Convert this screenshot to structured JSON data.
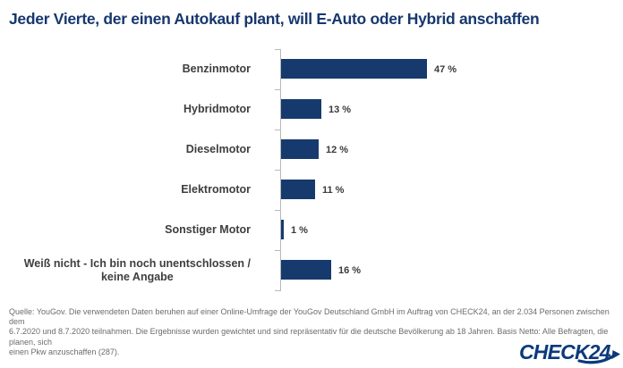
{
  "title": "Jeder Vierte, der einen Autokauf plant, will E-Auto oder Hybrid anschaffen",
  "chart_data": {
    "type": "bar",
    "orientation": "horizontal",
    "title": "Jeder Vierte, der einen Autokauf plant, will E-Auto oder Hybrid anschaffen",
    "categories": [
      "Benzinmotor",
      "Hybridmotor",
      "Dieselmotor",
      "Elektromotor",
      "Sonstiger Motor",
      "Weiß nicht - Ich bin noch unentschlossen / keine Angabe"
    ],
    "category_display_lines": [
      [
        "Benzinmotor"
      ],
      [
        "Hybridmotor"
      ],
      [
        "Dieselmotor"
      ],
      [
        "Elektromotor"
      ],
      [
        "Sonstiger Motor"
      ],
      [
        "Weiß nicht - Ich bin noch unentschlossen /",
        "keine Angabe"
      ]
    ],
    "values": [
      47,
      13,
      12,
      11,
      1,
      16
    ],
    "value_labels": [
      "47 %",
      "13 %",
      "12 %",
      "11 %",
      "1 %",
      "16 %"
    ],
    "unit": "%",
    "xlim": [
      0,
      50
    ],
    "grid": false,
    "legend": null,
    "bar_color": "#163a6d",
    "axis_color": "#b8b8b8",
    "label_color": "#3e3e3e",
    "value_color": "#3a3a3a"
  },
  "footer": {
    "lines": [
      "Quelle: YouGov. Die verwendeten Daten beruhen auf einer Online-Umfrage der YouGov Deutschland GmbH im Auftrag von CHECK24, an der 2.034 Personen zwischen dem",
      "6.7.2020 und 8.7.2020 teilnahmen. Die Ergebnisse wurden gewichtet und sind repräsentativ für die deutsche Bevölkerung ab 18 Jahren. Basis Netto: Alle Befragten, die planen, sich",
      "einen Pkw anzuschaffen (287)."
    ]
  },
  "logo": {
    "text": "CHECK24",
    "color": "#0b3a7b"
  },
  "colors": {
    "title": "#17376e",
    "bar": "#163a6d",
    "footer_text": "#6c6c6c"
  }
}
